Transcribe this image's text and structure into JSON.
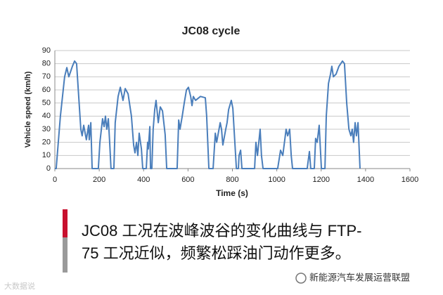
{
  "chart_data": {
    "type": "line",
    "title": "JC08  cycle",
    "xlabel": "Time (s)",
    "ylabel": "Vehicle speed (km/h)",
    "xlim": [
      0,
      1600
    ],
    "xticks": [
      0,
      200,
      400,
      600,
      800,
      1000,
      1200,
      1400,
      1600
    ],
    "ylim": [
      0,
      90
    ],
    "yticks": [
      0,
      10,
      20,
      30,
      40,
      50,
      60,
      70,
      80,
      90
    ],
    "grid": true,
    "x": [
      0,
      6,
      25,
      44,
      54,
      63,
      79,
      89,
      98,
      117,
      123,
      130,
      142,
      152,
      155,
      162,
      168,
      196,
      203,
      215,
      222,
      228,
      234,
      241,
      247,
      253,
      266,
      272,
      285,
      295,
      307,
      317,
      330,
      345,
      355,
      361,
      368,
      374,
      380,
      390,
      396,
      412,
      418,
      421,
      428,
      431,
      437,
      443,
      450,
      456,
      466,
      475,
      485,
      497,
      504,
      551,
      558,
      564,
      574,
      583,
      593,
      602,
      612,
      618,
      624,
      634,
      656,
      678,
      684,
      694,
      713,
      723,
      729,
      745,
      751,
      757,
      770,
      776,
      783,
      795,
      802,
      811,
      818,
      827,
      830,
      837,
      843,
      900,
      906,
      913,
      925,
      931,
      938,
      1004,
      1017,
      1027,
      1042,
      1049,
      1058,
      1065,
      1071,
      1137,
      1147,
      1153,
      1169,
      1175,
      1182,
      1191,
      1201,
      1217,
      1223,
      1233,
      1242,
      1248,
      1255,
      1267,
      1280,
      1296,
      1305,
      1315,
      1325,
      1334,
      1340,
      1346,
      1353,
      1359,
      1366,
      1375
    ],
    "series": [
      {
        "name": "JC08",
        "color": "#4a7ebb",
        "values": [
          0,
          0,
          40,
          70,
          77,
          70,
          78,
          82,
          80,
          30,
          25,
          33,
          22,
          33,
          22,
          35,
          0,
          0,
          20,
          38,
          32,
          40,
          30,
          38,
          20,
          0,
          0,
          35,
          55,
          62,
          52,
          61,
          57,
          40,
          18,
          12,
          20,
          10,
          27,
          15,
          0,
          0,
          20,
          15,
          32,
          0,
          0,
          30,
          45,
          52,
          35,
          47,
          44,
          26,
          0,
          0,
          37,
          30,
          40,
          50,
          60,
          62,
          55,
          48,
          55,
          52,
          55,
          54,
          40,
          0,
          0,
          27,
          20,
          35,
          30,
          18,
          30,
          35,
          45,
          52,
          46,
          20,
          0,
          0,
          10,
          14,
          0,
          0,
          20,
          10,
          30,
          10,
          0,
          0,
          14,
          10,
          30,
          25,
          30,
          10,
          0,
          0,
          13,
          0,
          0,
          23,
          20,
          33,
          0,
          0,
          40,
          65,
          72,
          78,
          70,
          72,
          78,
          82,
          80,
          50,
          30,
          25,
          30,
          20,
          35,
          25,
          35,
          0
        ]
      }
    ]
  },
  "caption": {
    "lines": [
      "JC08 工况在波峰波谷的变化曲线与 FTP-",
      "75 工况近似，频繁松踩油门动作更多。"
    ]
  },
  "watermark": "新能源汽车发展运营联盟",
  "corner_mark": "大数据说"
}
